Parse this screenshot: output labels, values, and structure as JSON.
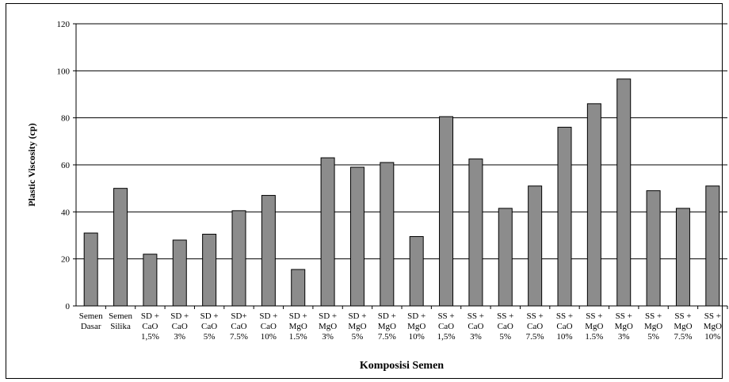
{
  "chart_data": {
    "type": "bar",
    "title": "",
    "xlabel": "Komposisi Semen",
    "ylabel": "Plastic Viscosity (cp)",
    "ylim": [
      0,
      120
    ],
    "yticks": [
      0,
      20,
      40,
      60,
      80,
      100,
      120
    ],
    "grid": true,
    "legend": "none",
    "bar_color": "#8c8c8c",
    "categories": [
      [
        "Semen",
        "Dasar"
      ],
      [
        "Semen",
        "Silika"
      ],
      [
        "SD +",
        "CaO",
        "1,5%"
      ],
      [
        "SD +",
        "CaO",
        "3%"
      ],
      [
        "SD +",
        "CaO",
        "5%"
      ],
      [
        "SD+",
        "CaO",
        "7.5%"
      ],
      [
        "SD +",
        "CaO",
        "10%"
      ],
      [
        "SD +",
        "MgO",
        "1.5%"
      ],
      [
        "SD +",
        "MgO",
        "3%"
      ],
      [
        "SD +",
        "MgO",
        "5%"
      ],
      [
        "SD +",
        "MgO",
        "7.5%"
      ],
      [
        "SD +",
        "MgO",
        "10%"
      ],
      [
        "SS +",
        "CaO",
        "1,5%"
      ],
      [
        "SS +",
        "CaO",
        "3%"
      ],
      [
        "SS +",
        "CaO",
        "5%"
      ],
      [
        "SS +",
        "CaO",
        "7.5%"
      ],
      [
        "SS +",
        "CaO",
        "10%"
      ],
      [
        "SS +",
        "MgO",
        "1.5%"
      ],
      [
        "SS +",
        "MgO",
        "3%"
      ],
      [
        "SS +",
        "MgO",
        "5%"
      ],
      [
        "SS +",
        "MgO",
        "7.5%"
      ],
      [
        "SS +",
        "MgO",
        "10%"
      ]
    ],
    "values": [
      31,
      50,
      22,
      28,
      30.5,
      40.5,
      47,
      15.5,
      63,
      59,
      61,
      29.5,
      80.5,
      62.5,
      41.5,
      51,
      76,
      86,
      96.5,
      49,
      41.5,
      51
    ]
  }
}
